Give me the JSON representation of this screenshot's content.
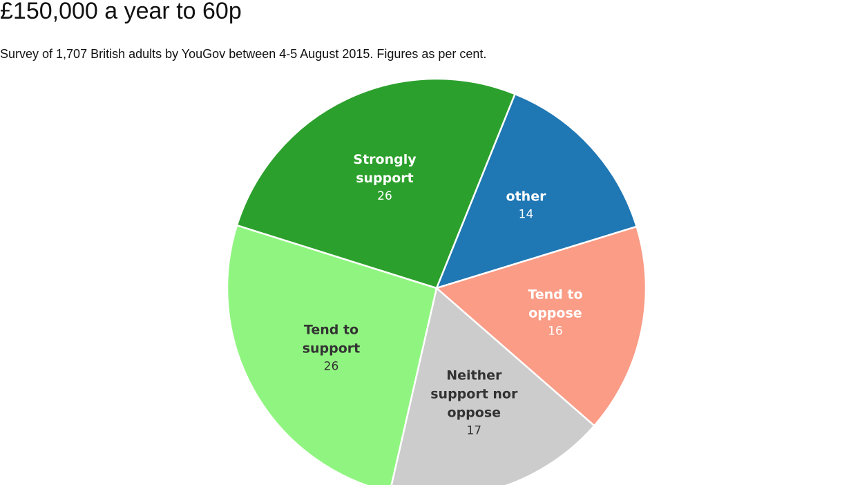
{
  "header": {
    "title": "£150,000 a year to 60p",
    "subtitle": "Survey of 1,707 British adults by YouGov between 4-5 August 2015. Figures as per cent."
  },
  "chart_data": {
    "type": "pie",
    "title": "£150,000 a year to 60p",
    "subtitle": "Survey of 1,707 British adults by YouGov between 4-5 August 2015. Figures as per cent.",
    "unit": "per cent",
    "slices": [
      {
        "label": "other",
        "value": 14,
        "color": "#1f77b4",
        "label_color": "#ffffff"
      },
      {
        "label": "Tend to oppose",
        "value": 16,
        "color": "#fa9c86",
        "label_color": "#ffffff"
      },
      {
        "label": "Neither support nor oppose",
        "value": 17,
        "color": "#cccccc",
        "label_color": "#333333"
      },
      {
        "label": "Tend to support",
        "value": 26,
        "color": "#90f580",
        "label_color": "#333333"
      },
      {
        "label": "Strongly support",
        "value": 26,
        "color": "#2ca02c",
        "label_color": "#ffffff"
      }
    ],
    "legend": "none (labels inside slices)",
    "label_lines": {
      "other": [
        "other"
      ],
      "Tend to oppose": [
        "Tend to",
        "oppose"
      ],
      "Neither support nor oppose": [
        "Neither",
        "support nor",
        "oppose"
      ],
      "Tend to support": [
        "Tend to",
        "support"
      ],
      "Strongly support": [
        "Strongly",
        "support"
      ]
    }
  }
}
